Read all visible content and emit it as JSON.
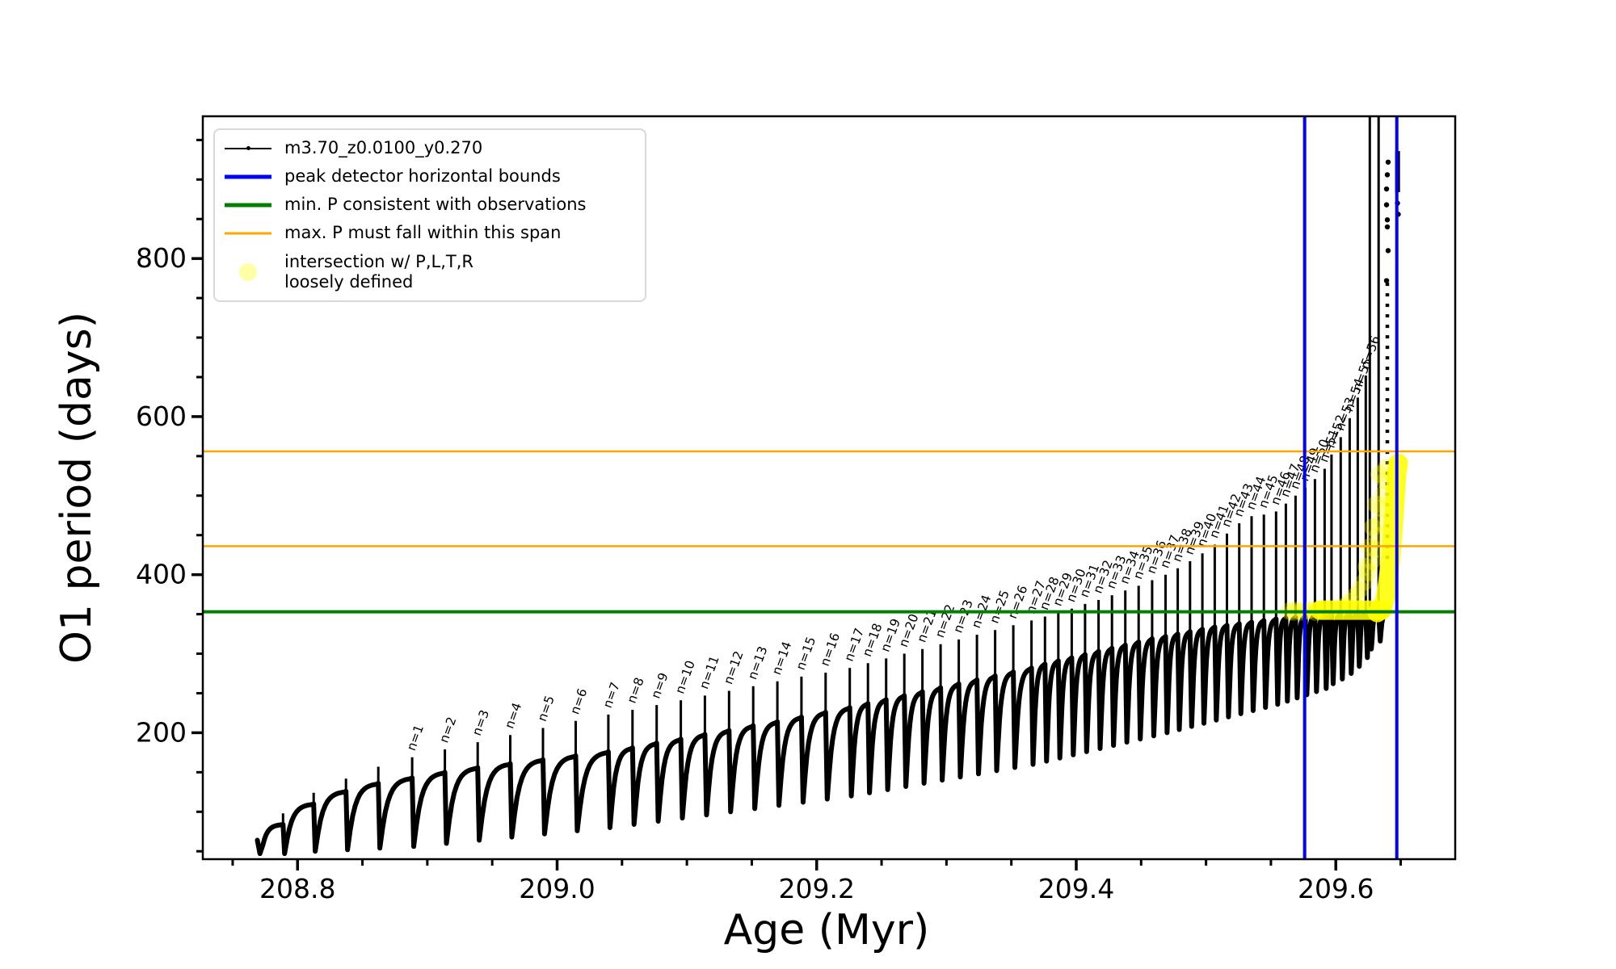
{
  "axes": {
    "xlabel": "Age (Myr)",
    "ylabel": "O1 period (days)",
    "xlim": [
      208.727,
      209.692
    ],
    "ylim": [
      40,
      980
    ],
    "xticks": {
      "major": [
        208.8,
        209.0,
        209.2,
        209.4,
        209.6
      ],
      "labels": [
        "208.8",
        "209.0",
        "209.2",
        "209.4",
        "209.6"
      ],
      "minor_start": 208.75,
      "minor_step": 0.05
    },
    "yticks": {
      "major": [
        200,
        400,
        600,
        800
      ],
      "labels": [
        "200",
        "400",
        "600",
        "800"
      ],
      "minor_start": 50,
      "minor_step": 50,
      "minor_end": 950
    }
  },
  "legend": {
    "entries": [
      {
        "label": "m3.70_z0.0100_y0.270",
        "type": "line-dot",
        "color": "#000000"
      },
      {
        "label": "peak detector horizontal bounds",
        "type": "line",
        "color": "#0000ff"
      },
      {
        "label": "min. P consistent with observations",
        "type": "line",
        "color": "#008000"
      },
      {
        "label": "max. P must fall within this span",
        "type": "line",
        "color": "#ffa500"
      },
      {
        "label": "intersection w/ P,L,T,R",
        "label2": "loosely defined",
        "type": "marker",
        "color": "#ffff00"
      }
    ]
  },
  "chart_data": {
    "type": "line",
    "series_name": "m3.70_z0.0100_y0.270",
    "xlabel": "Age (Myr)",
    "ylabel": "O1 period (days)",
    "colors": {
      "track": "#000000",
      "bounds": "#0000ff",
      "min_p": "#008000",
      "span": "#ffa500",
      "intersection": "#ffff00"
    },
    "hlines": [
      {
        "y": 353,
        "color": "#008000",
        "label": "min. P consistent with observations",
        "lw": 4
      },
      {
        "y": 436,
        "color": "#ffa500",
        "label": "max. P must fall within this span (lower)",
        "lw": 2.5
      },
      {
        "y": 556,
        "color": "#ffa500",
        "label": "max. P must fall within this span (upper)",
        "lw": 2.5
      }
    ],
    "vlines": [
      {
        "x": 209.576,
        "color": "#0000ff",
        "label": "peak detector horizontal bounds (left)",
        "lw": 4
      },
      {
        "x": 209.647,
        "color": "#0000ff",
        "label": "peak detector horizontal bounds (right)",
        "lw": 4
      }
    ],
    "event_label_prefix": "n=",
    "start": {
      "x": 208.769,
      "y": 64,
      "dip": 47
    },
    "pulse_events": [
      {
        "n": null,
        "x": 208.7888,
        "peak": 98,
        "plateau": 84,
        "dip": 47
      },
      {
        "n": null,
        "x": 208.8124,
        "peak": 124,
        "plateau": 110,
        "dip": 50
      },
      {
        "n": null,
        "x": 208.8373,
        "peak": 142,
        "plateau": 126,
        "dip": 52
      },
      {
        "n": null,
        "x": 208.8622,
        "peak": 157,
        "plateau": 136,
        "dip": 54
      },
      {
        "n": 1,
        "x": 208.8883,
        "peak": 169,
        "plateau": 143,
        "dip": 56
      },
      {
        "n": 2,
        "x": 208.9135,
        "peak": 179,
        "plateau": 150,
        "dip": 60
      },
      {
        "n": 3,
        "x": 208.9388,
        "peak": 188,
        "plateau": 156,
        "dip": 64
      },
      {
        "n": 4,
        "x": 208.9639,
        "peak": 197,
        "plateau": 161,
        "dip": 68
      },
      {
        "n": 5,
        "x": 208.9891,
        "peak": 206,
        "plateau": 166,
        "dip": 72
      },
      {
        "n": 6,
        "x": 209.0143,
        "peak": 215,
        "plateau": 171,
        "dip": 76
      },
      {
        "n": 7,
        "x": 209.0395,
        "peak": 223,
        "plateau": 176,
        "dip": 80
      },
      {
        "n": 8,
        "x": 209.0581,
        "peak": 229,
        "plateau": 181,
        "dip": 84
      },
      {
        "n": 9,
        "x": 209.0767,
        "peak": 235,
        "plateau": 187,
        "dip": 88
      },
      {
        "n": 10,
        "x": 209.0953,
        "peak": 241,
        "plateau": 192,
        "dip": 92
      },
      {
        "n": 11,
        "x": 209.1139,
        "peak": 247,
        "plateau": 198,
        "dip": 96
      },
      {
        "n": 12,
        "x": 209.1325,
        "peak": 253,
        "plateau": 203,
        "dip": 100
      },
      {
        "n": 13,
        "x": 209.1511,
        "peak": 259,
        "plateau": 209,
        "dip": 104
      },
      {
        "n": 14,
        "x": 209.1697,
        "peak": 265,
        "plateau": 214,
        "dip": 108
      },
      {
        "n": 15,
        "x": 209.1883,
        "peak": 271,
        "plateau": 220,
        "dip": 112
      },
      {
        "n": 16,
        "x": 209.2069,
        "peak": 276,
        "plateau": 226,
        "dip": 116
      },
      {
        "n": 17,
        "x": 209.2255,
        "peak": 282,
        "plateau": 232,
        "dip": 120
      },
      {
        "n": 18,
        "x": 209.2395,
        "peak": 288,
        "plateau": 237,
        "dip": 124
      },
      {
        "n": 19,
        "x": 209.2535,
        "peak": 294,
        "plateau": 242,
        "dip": 128
      },
      {
        "n": 20,
        "x": 209.2675,
        "peak": 300,
        "plateau": 247,
        "dip": 132
      },
      {
        "n": 21,
        "x": 209.2815,
        "peak": 306,
        "plateau": 252,
        "dip": 136
      },
      {
        "n": 22,
        "x": 209.2955,
        "peak": 312,
        "plateau": 257,
        "dip": 140
      },
      {
        "n": 23,
        "x": 209.3095,
        "peak": 318,
        "plateau": 262,
        "dip": 144
      },
      {
        "n": 24,
        "x": 209.3235,
        "peak": 324,
        "plateau": 267,
        "dip": 148
      },
      {
        "n": 25,
        "x": 209.3375,
        "peak": 330,
        "plateau": 272,
        "dip": 152
      },
      {
        "n": 26,
        "x": 209.3515,
        "peak": 336,
        "plateau": 277,
        "dip": 156
      },
      {
        "n": 27,
        "x": 209.3655,
        "peak": 342,
        "plateau": 282,
        "dip": 160
      },
      {
        "n": 28,
        "x": 209.3759,
        "peak": 347,
        "plateau": 287,
        "dip": 164
      },
      {
        "n": 29,
        "x": 209.3862,
        "peak": 352,
        "plateau": 291,
        "dip": 168
      },
      {
        "n": 30,
        "x": 209.3965,
        "peak": 357,
        "plateau": 295,
        "dip": 172
      },
      {
        "n": 31,
        "x": 209.4068,
        "peak": 363,
        "plateau": 299,
        "dip": 176
      },
      {
        "n": 32,
        "x": 209.4172,
        "peak": 368,
        "plateau": 303,
        "dip": 180
      },
      {
        "n": 33,
        "x": 209.4275,
        "peak": 374,
        "plateau": 307,
        "dip": 184
      },
      {
        "n": 34,
        "x": 209.4378,
        "peak": 380,
        "plateau": 311,
        "dip": 188
      },
      {
        "n": 35,
        "x": 209.4481,
        "peak": 386,
        "plateau": 315,
        "dip": 192
      },
      {
        "n": 36,
        "x": 209.4585,
        "peak": 393,
        "plateau": 319,
        "dip": 196
      },
      {
        "n": 37,
        "x": 209.4688,
        "peak": 400,
        "plateau": 322,
        "dip": 200
      },
      {
        "n": 38,
        "x": 209.4782,
        "peak": 408,
        "plateau": 325,
        "dip": 204
      },
      {
        "n": 39,
        "x": 209.4877,
        "peak": 417,
        "plateau": 328,
        "dip": 208
      },
      {
        "n": 40,
        "x": 209.4972,
        "peak": 427,
        "plateau": 331,
        "dip": 212
      },
      {
        "n": 41,
        "x": 209.5067,
        "peak": 438,
        "plateau": 334,
        "dip": 216
      },
      {
        "n": 42,
        "x": 209.5161,
        "peak": 452,
        "plateau": 336,
        "dip": 220
      },
      {
        "n": 43,
        "x": 209.5256,
        "peak": 465,
        "plateau": 338,
        "dip": 224
      },
      {
        "n": 44,
        "x": 209.5351,
        "peak": 474,
        "plateau": 340,
        "dip": 228
      },
      {
        "n": 45,
        "x": 209.5446,
        "peak": 476,
        "plateau": 342,
        "dip": 232
      },
      {
        "n": 46,
        "x": 209.554,
        "peak": 480,
        "plateau": 344,
        "dip": 236
      },
      {
        "n": 47,
        "x": 209.5615,
        "peak": 490,
        "plateau": 345,
        "dip": 240
      },
      {
        "n": 48,
        "x": 209.569,
        "peak": 500,
        "plateau": 346,
        "dip": 244
      },
      {
        "n": 49,
        "x": 209.5765,
        "peak": 510,
        "plateau": 347,
        "dip": 248
      },
      {
        "n": 50,
        "x": 209.5839,
        "peak": 521,
        "plateau": 348,
        "dip": 252
      },
      {
        "n": 51,
        "x": 209.5914,
        "peak": 534,
        "plateau": 349,
        "dip": 256
      },
      {
        "n": 52,
        "x": 209.5967,
        "peak": 552,
        "plateau": 350,
        "dip": 262
      },
      {
        "n": 53,
        "x": 209.6038,
        "peak": 574,
        "plateau": 350,
        "dip": 268
      },
      {
        "n": 54,
        "x": 209.6107,
        "peak": 598,
        "plateau": 351,
        "dip": 275
      },
      {
        "n": 55,
        "x": 209.6169,
        "peak": 624,
        "plateau": 351,
        "dip": 284
      },
      {
        "n": 56,
        "x": 209.6231,
        "peak": 652,
        "plateau": 352,
        "dip": 295
      },
      {
        "n": null,
        "x": 209.6262,
        "peak": 980,
        "plateau": 352,
        "dip": 306,
        "offscale": true
      },
      {
        "n": null,
        "x": 209.633,
        "peak": 980,
        "plateau": 352,
        "dip": 316,
        "offscale": true
      }
    ],
    "runaway_column": {
      "x": 209.6397,
      "y_from": 420,
      "y_to": 775,
      "style": "dotted"
    },
    "final_cluster": {
      "x": 209.6476,
      "y_from": 884,
      "y_to": 936
    },
    "extra_dots": [
      [
        209.6391,
        888
      ],
      [
        209.6391,
        868
      ],
      [
        209.6397,
        849
      ],
      [
        209.6397,
        840
      ],
      [
        209.6403,
        810
      ],
      [
        209.6391,
        772
      ],
      [
        209.6397,
        906
      ],
      [
        209.6403,
        922
      ],
      [
        209.6475,
        870
      ],
      [
        209.6481,
        856
      ]
    ],
    "intersection": {
      "color": "#ffff00",
      "marker_radius_px": 11,
      "baseline": {
        "y": 353,
        "x_from": 209.588,
        "x_to": 209.6355
      },
      "arm": [
        [
          209.632,
          352
        ],
        [
          209.6355,
          357
        ],
        [
          209.638,
          369
        ],
        [
          209.64,
          389
        ],
        [
          209.642,
          416
        ],
        [
          209.6435,
          447
        ],
        [
          209.645,
          481
        ],
        [
          209.6462,
          511
        ],
        [
          209.6472,
          532
        ],
        [
          209.6482,
          541
        ]
      ],
      "scatter": [
        [
          209.5645,
          354
        ],
        [
          209.5675,
          353
        ],
        [
          209.5705,
          355
        ],
        [
          209.574,
          353
        ],
        [
          209.5775,
          354
        ],
        [
          209.5805,
          356
        ],
        [
          209.584,
          353
        ],
        [
          209.5875,
          355
        ],
        [
          209.591,
          354
        ],
        [
          209.607,
          360
        ],
        [
          209.611,
          366
        ],
        [
          209.615,
          373
        ],
        [
          209.6185,
          381
        ],
        [
          209.622,
          391
        ],
        [
          209.625,
          403
        ],
        [
          209.6275,
          417
        ],
        [
          209.63,
          432
        ],
        [
          209.632,
          449
        ],
        [
          209.634,
          466
        ],
        [
          209.6355,
          484
        ],
        [
          209.637,
          502
        ],
        [
          209.638,
          519
        ],
        [
          209.639,
          535
        ],
        [
          209.6335,
          527
        ],
        [
          209.631,
          489
        ],
        [
          209.6285,
          460
        ],
        [
          209.626,
          435
        ],
        [
          209.6235,
          410
        ]
      ]
    }
  }
}
